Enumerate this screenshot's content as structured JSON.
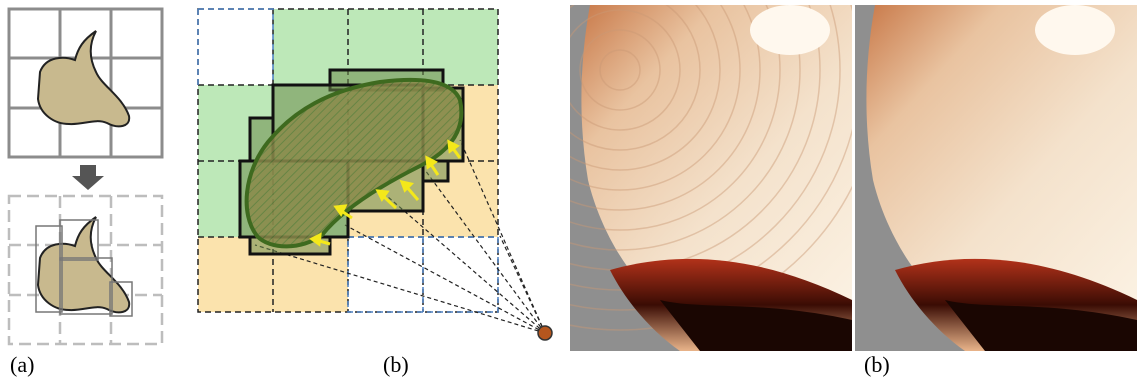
{
  "panels": [
    {
      "label": "(a)"
    },
    {
      "label": "(b)"
    },
    {
      "label": "(b)"
    }
  ]
}
